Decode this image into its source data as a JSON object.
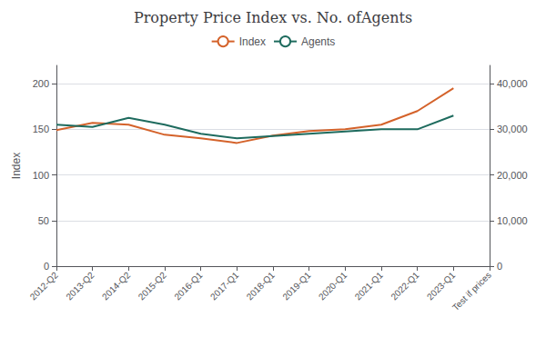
{
  "chart_data": {
    "type": "line",
    "title": "Property Price Index vs. No. ofAgents",
    "ylabel": "Index",
    "categories": [
      "2012-Q2",
      "2013-Q2",
      "2014-Q2",
      "2015-Q2",
      "2016-Q1",
      "2017-Q1",
      "2018-Q1",
      "2019-Q1",
      "2020-Q1",
      "2021-Q1",
      "2022-Q1",
      "2023-Q1",
      "Test if prices"
    ],
    "series": [
      {
        "name": "Index",
        "color": "#d4622a",
        "axis": "y",
        "values": [
          149,
          157,
          155,
          144,
          140,
          135,
          143,
          148,
          150,
          155,
          170,
          195,
          null
        ]
      },
      {
        "name": "Agents",
        "color": "#1e6b5e",
        "axis": "y2",
        "values": [
          31000,
          30500,
          32500,
          31000,
          29000,
          28000,
          28500,
          29000,
          29500,
          30000,
          30000,
          33000,
          null
        ]
      }
    ],
    "ylim": [
      0,
      220
    ],
    "yticks": [
      0,
      50,
      100,
      150,
      200
    ],
    "y2lim": [
      0,
      44000
    ],
    "y2ticks": [
      0,
      {
        "value": 10000,
        "label": "10,000"
      },
      {
        "value": 20000,
        "label": "20,000"
      },
      {
        "value": 30000,
        "label": "30,000"
      },
      {
        "value": 40000,
        "label": "40,000"
      }
    ],
    "grid": true,
    "legend": "top"
  }
}
